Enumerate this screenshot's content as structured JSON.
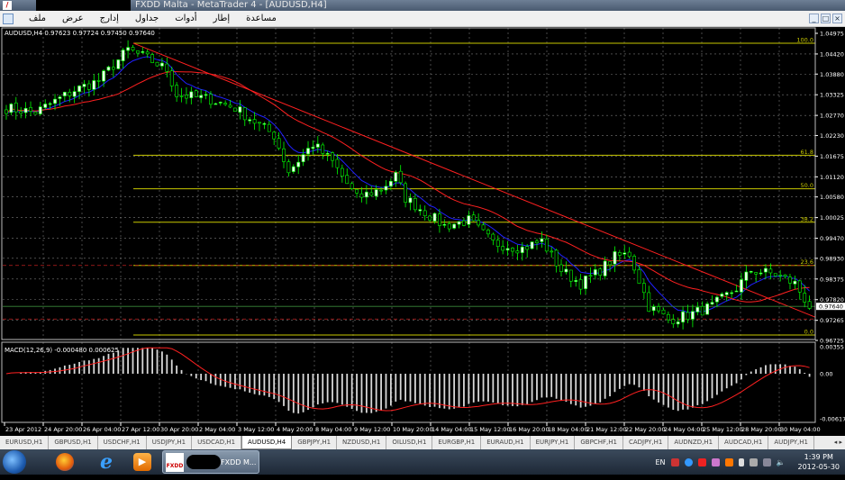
{
  "window": {
    "title": "FXDD Malta - MetaTrader 4 - [AUDUSD,H4]",
    "logo": "FXDD"
  },
  "menu": [
    "ملف",
    "عرض",
    "إدارج",
    "جداول",
    "أدوات",
    "إطار",
    "مساعدة"
  ],
  "window_controls": [
    "_",
    "□",
    "×"
  ],
  "chart": {
    "header": "AUDUSD,H4  0.97623 0.97724 0.97450 0.97640",
    "price_labels": [
      "1.04975",
      "1.04420",
      "1.03880",
      "1.03325",
      "1.02770",
      "1.02230",
      "1.01675",
      "1.01120",
      "1.00580",
      "1.00025",
      "0.99470",
      "0.98930",
      "0.98375",
      "0.97820",
      "0.97265",
      "0.96725"
    ],
    "current_price": "0.97640",
    "fib_levels": [
      {
        "label": "100.0",
        "price": 1.0471
      },
      {
        "label": "61.8",
        "price": 1.017
      },
      {
        "label": "50.0",
        "price": 1.008
      },
      {
        "label": "38.2",
        "price": 0.999
      },
      {
        "label": "23.6",
        "price": 0.9874
      },
      {
        "label": "0.0",
        "price": 0.9687
      }
    ],
    "time_labels": [
      "23 Apr 2012",
      "24 Apr 20:00",
      "26 Apr 04:00",
      "27 Apr 12:00",
      "30 Apr 20:00",
      "2 May 04:00",
      "3 May 12:00",
      "4 May 20:00",
      "8 May 04:00",
      "9 May 12:00",
      "10 May 20:00",
      "14 May 04:00",
      "15 May 12:00",
      "16 May 20:00",
      "18 May 04:00",
      "21 May 12:00",
      "22 May 20:00",
      "24 May 04:00",
      "25 May 12:00",
      "28 May 20:00",
      "30 May 04:00"
    ],
    "macd": {
      "header": "MACD(12,26,9) -0.000480 0.000625",
      "scale": [
        "0.00355",
        "0.00",
        "-0.00617"
      ]
    },
    "colors": {
      "bg": "#000000",
      "candle": "#00ff00",
      "fib": "#c8c800",
      "ma_fast": "#2020ff",
      "ma_slow": "#ff2020",
      "grid": "#7a7a7a"
    }
  },
  "chart_data": {
    "type": "candlestick",
    "symbol": "AUDUSD",
    "timeframe": "H4",
    "ylim": [
      0.96725,
      1.04975
    ],
    "close_anchors": [
      [
        0,
        1.0297
      ],
      [
        6,
        1.0285
      ],
      [
        14,
        1.0345
      ],
      [
        19,
        1.037
      ],
      [
        25,
        1.0454
      ],
      [
        29,
        1.043
      ],
      [
        33,
        1.04
      ],
      [
        35,
        1.0333
      ],
      [
        42,
        1.032
      ],
      [
        47,
        1.0297
      ],
      [
        55,
        1.0224
      ],
      [
        58,
        1.0127
      ],
      [
        63,
        1.02
      ],
      [
        67,
        1.0152
      ],
      [
        72,
        1.0055
      ],
      [
        77,
        1.008
      ],
      [
        80,
        1.0115
      ],
      [
        82,
        1.0055
      ],
      [
        90,
        0.998
      ],
      [
        95,
        0.9995
      ],
      [
        100,
        0.9934
      ],
      [
        106,
        0.992
      ],
      [
        110,
        0.994
      ],
      [
        114,
        0.9861
      ],
      [
        118,
        0.9825
      ],
      [
        121,
        0.985
      ],
      [
        125,
        0.9897
      ],
      [
        128,
        0.9905
      ],
      [
        132,
        0.9764
      ],
      [
        136,
        0.9728
      ],
      [
        140,
        0.974
      ],
      [
        145,
        0.9764
      ],
      [
        150,
        0.9813
      ],
      [
        153,
        0.9861
      ],
      [
        158,
        0.985
      ],
      [
        162,
        0.9825
      ],
      [
        165,
        0.9764
      ]
    ]
  },
  "tabs": [
    "EURUSD,H1",
    "GBPUSD,H1",
    "USDCHF,H1",
    "USDJPY,H1",
    "USDCAD,H1",
    "AUDUSD,H4",
    "GBPJPY,H1",
    "NZDUSD,H1",
    "OILUSD,H1",
    "EURGBP,H1",
    "EURAUD,H1",
    "EURJPY,H1",
    "GBPCHF,H1",
    "CADJPY,H1",
    "AUDNZD,H1",
    "AUDCAD,H1",
    "AUDJPY,H1"
  ],
  "active_tab": "AUDUSD,H4",
  "taskbar": {
    "app_label": "FXDD M...",
    "lang": "EN",
    "time": "1:39 PM",
    "date": "2012-05-30"
  }
}
